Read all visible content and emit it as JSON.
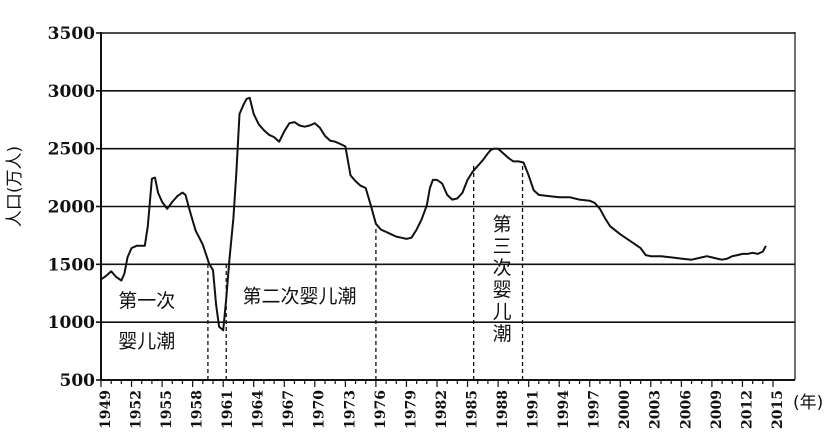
{
  "chart_data": {
    "type": "line",
    "title": "",
    "ylabel": "人口(万人)",
    "xlabel": "(年)",
    "ylim": [
      500,
      3500
    ],
    "xlim": [
      1949,
      2016
    ],
    "yticks": [
      500,
      1000,
      1500,
      2000,
      2500,
      3000,
      3500
    ],
    "xticks": [
      1949,
      1952,
      1955,
      1958,
      1961,
      1964,
      1967,
      1970,
      1973,
      1976,
      1979,
      1982,
      1985,
      1988,
      1991,
      1994,
      1997,
      2000,
      2003,
      2006,
      2009,
      2012,
      2015
    ],
    "grid": "horizontal",
    "series": [
      {
        "x": [
          1949,
          1949.5,
          1950,
          1950.5,
          1951,
          1951.3,
          1951.6,
          1952,
          1952.5,
          1953,
          1953.3,
          1953.6,
          1954,
          1954.3,
          1954.6,
          1955,
          1955.5,
          1956,
          1956.5,
          1957,
          1957.3,
          1957.6,
          1958,
          1958.3,
          1958.6,
          1959,
          1959.3,
          1959.6,
          1960,
          1960.3,
          1960.6,
          1961,
          1961.3,
          1961.6,
          1962,
          1962.3,
          1962.6,
          1963,
          1963.3,
          1963.6,
          1964,
          1964.5,
          1965,
          1965.5,
          1966,
          1966.5,
          1967,
          1967.5,
          1968,
          1968.5,
          1969,
          1969.5,
          1970,
          1970.5,
          1971,
          1971.5,
          1972,
          1972.5,
          1973,
          1973.5,
          1974,
          1974.5,
          1975,
          1975.5,
          1976,
          1976.5,
          1977,
          1977.5,
          1978,
          1978.5,
          1979,
          1979.5,
          1980,
          1980.5,
          1981,
          1981.3,
          1981.6,
          1982,
          1982.5,
          1983,
          1983.5,
          1984,
          1984.5,
          1985,
          1985.5,
          1986,
          1986.5,
          1987,
          1987.3,
          1987.6,
          1988,
          1988.5,
          1989,
          1989.5,
          1990,
          1990.5,
          1991,
          1991.5,
          1992,
          1993,
          1994,
          1995,
          1996,
          1997,
          1997.5,
          1998,
          1998.5,
          1999,
          2000,
          2001,
          2002,
          2002.5,
          2003,
          2004,
          2005,
          2006,
          2007,
          2008,
          2008.5,
          2009,
          2009.5,
          2010,
          2010.5,
          2011,
          2011.5,
          2012,
          2012.5,
          2013,
          2013.5,
          2014,
          2014.3
        ],
        "values": [
          1370,
          1400,
          1440,
          1390,
          1360,
          1420,
          1560,
          1640,
          1660,
          1660,
          1660,
          1830,
          2240,
          2250,
          2120,
          2040,
          1980,
          2040,
          2090,
          2120,
          2100,
          2000,
          1880,
          1790,
          1740,
          1670,
          1590,
          1510,
          1450,
          1150,
          960,
          930,
          1200,
          1530,
          1900,
          2300,
          2800,
          2880,
          2930,
          2940,
          2800,
          2710,
          2660,
          2620,
          2600,
          2560,
          2650,
          2720,
          2730,
          2700,
          2690,
          2700,
          2720,
          2680,
          2610,
          2570,
          2560,
          2540,
          2520,
          2270,
          2220,
          2180,
          2160,
          2010,
          1850,
          1800,
          1780,
          1760,
          1740,
          1730,
          1720,
          1730,
          1800,
          1890,
          2010,
          2160,
          2230,
          2230,
          2200,
          2100,
          2060,
          2070,
          2120,
          2230,
          2300,
          2350,
          2400,
          2460,
          2490,
          2500,
          2500,
          2460,
          2420,
          2390,
          2390,
          2380,
          2270,
          2140,
          2100,
          2090,
          2080,
          2080,
          2060,
          2050,
          2030,
          1980,
          1900,
          1830,
          1760,
          1700,
          1640,
          1580,
          1570,
          1570,
          1560,
          1550,
          1540,
          1560,
          1570,
          1560,
          1550,
          1540,
          1550,
          1570,
          1580,
          1590,
          1590,
          1600,
          1590,
          1610,
          1660
        ]
      }
    ],
    "reference_lines": [
      1959.5,
      1961.3,
      1976,
      1985.6,
      1990.4
    ],
    "annotations": [
      {
        "text": "第一次",
        "x": 1953.5,
        "y": 1130,
        "orient": "horizontal"
      },
      {
        "text": "婴儿潮",
        "x": 1953.5,
        "y": 780,
        "orient": "horizontal"
      },
      {
        "text": "第二次婴儿潮",
        "x": 1968.5,
        "y": 1170,
        "orient": "horizontal"
      },
      {
        "text": "第三次婴儿潮",
        "x": 1988.4,
        "y": 1850,
        "orient": "vertical"
      }
    ]
  }
}
